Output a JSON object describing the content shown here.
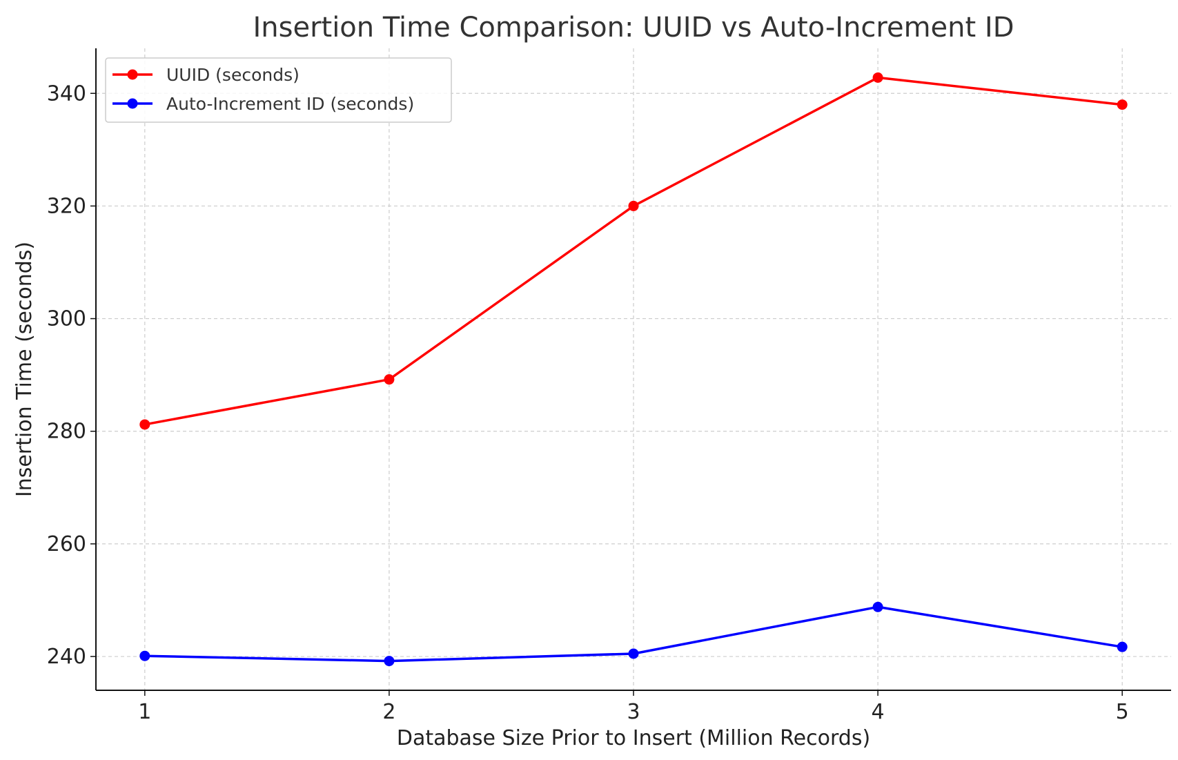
{
  "chart_data": {
    "type": "line",
    "title": "Insertion Time Comparison: UUID vs Auto-Increment ID",
    "xlabel": "Database Size Prior to Insert (Million Records)",
    "ylabel": "Insertion Time (seconds)",
    "x": [
      1,
      2,
      3,
      4,
      5
    ],
    "x_ticks": [
      "1",
      "2",
      "3",
      "4",
      "5"
    ],
    "y_ticks": [
      240,
      260,
      280,
      300,
      320,
      340
    ],
    "xlim": [
      0.8,
      5.2
    ],
    "ylim": [
      234,
      348
    ],
    "grid": true,
    "legend_position": "top-left",
    "series": [
      {
        "name": "UUID (seconds)",
        "color": "#ff0000",
        "marker": "circle",
        "values": [
          281.2,
          289.2,
          320.0,
          342.8,
          338.0
        ]
      },
      {
        "name": "Auto-Increment ID (seconds)",
        "color": "#0000ff",
        "marker": "circle",
        "values": [
          240.1,
          239.2,
          240.5,
          248.8,
          241.7
        ]
      }
    ]
  }
}
